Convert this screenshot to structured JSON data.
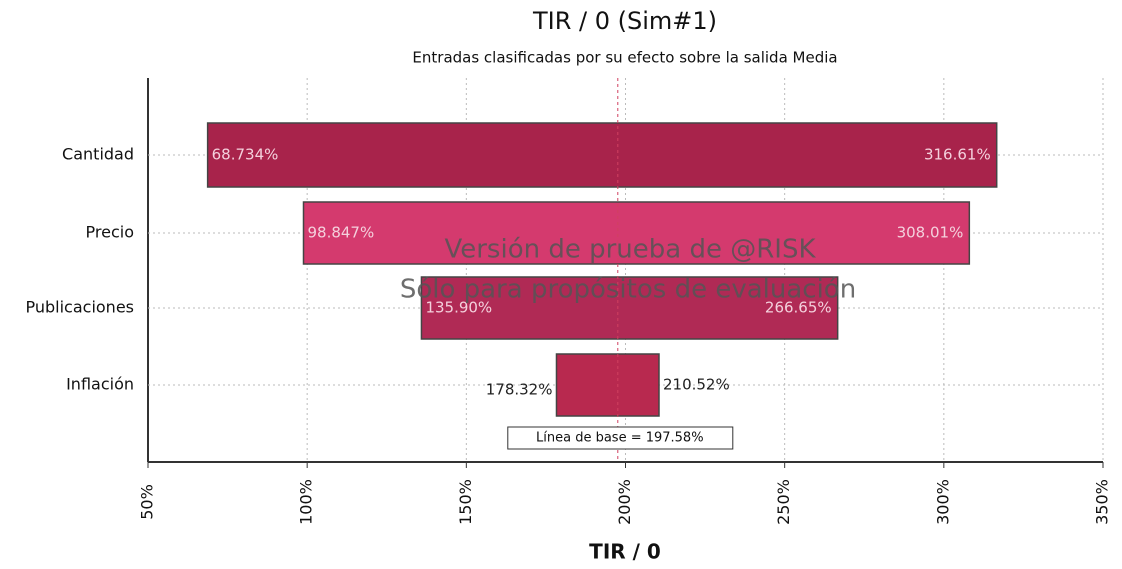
{
  "chart_data": {
    "type": "tornado",
    "title": "TIR / 0 (Sim#1)",
    "subtitle": "Entradas clasificadas por su efecto sobre la salida Media",
    "x_label": "TIR / 0",
    "categories": [
      "Cantidad",
      "Precio",
      "Publicaciones",
      "Inflación"
    ],
    "low": [
      68.734,
      98.847,
      135.9,
      178.32
    ],
    "high": [
      316.61,
      308.01,
      266.65,
      210.52
    ],
    "low_labels": [
      "68.734%",
      "98.847%",
      "135.90%",
      "178.32%"
    ],
    "high_labels": [
      "316.61%",
      "308.01%",
      "266.65%",
      "210.52%"
    ],
    "colors": [
      "#a8234b",
      "#d43a6e",
      "#b02a55",
      "#b8294f"
    ],
    "baseline": {
      "value": 197.58,
      "label": "Línea de base = 197.58%"
    },
    "watermark": [
      "Versión de prueba de @RISK",
      "Sólo para propósitos de evaluación"
    ],
    "xlim": [
      50,
      350
    ],
    "xticks": [
      {
        "value": 50,
        "label": "50%"
      },
      {
        "value": 100,
        "label": "100%"
      },
      {
        "value": 150,
        "label": "150%"
      },
      {
        "value": 200,
        "label": "200%"
      },
      {
        "value": 250,
        "label": "250%"
      },
      {
        "value": 300,
        "label": "300%"
      },
      {
        "value": 350,
        "label": "350%"
      }
    ],
    "grid": true
  }
}
